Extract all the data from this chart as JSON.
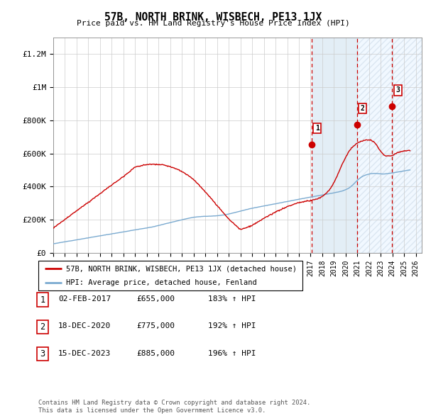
{
  "title": "57B, NORTH BRINK, WISBECH, PE13 1JX",
  "subtitle": "Price paid vs. HM Land Registry's House Price Index (HPI)",
  "ylim": [
    0,
    1300000
  ],
  "xlim_start": 1995,
  "xlim_end": 2026.5,
  "hpi_color": "#7aaad0",
  "price_color": "#cc0000",
  "highlight1_start": 2017.08,
  "highlight1_end": 2021.0,
  "highlight2_start": 2021.0,
  "highlight2_end": 2026.5,
  "sales": [
    {
      "label": "1",
      "date": 2017.09,
      "price": 655000
    },
    {
      "label": "2",
      "date": 2020.97,
      "price": 775000
    },
    {
      "label": "3",
      "date": 2023.97,
      "price": 885000
    }
  ],
  "table_rows": [
    {
      "num": "1",
      "date": "02-FEB-2017",
      "price": "£655,000",
      "hpi": "183% ↑ HPI"
    },
    {
      "num": "2",
      "date": "18-DEC-2020",
      "price": "£775,000",
      "hpi": "192% ↑ HPI"
    },
    {
      "num": "3",
      "date": "15-DEC-2023",
      "price": "£885,000",
      "hpi": "196% ↑ HPI"
    }
  ],
  "legend_line1": "57B, NORTH BRINK, WISBECH, PE13 1JX (detached house)",
  "legend_line2": "HPI: Average price, detached house, Fenland",
  "footer1": "Contains HM Land Registry data © Crown copyright and database right 2024.",
  "footer2": "This data is licensed under the Open Government Licence v3.0."
}
